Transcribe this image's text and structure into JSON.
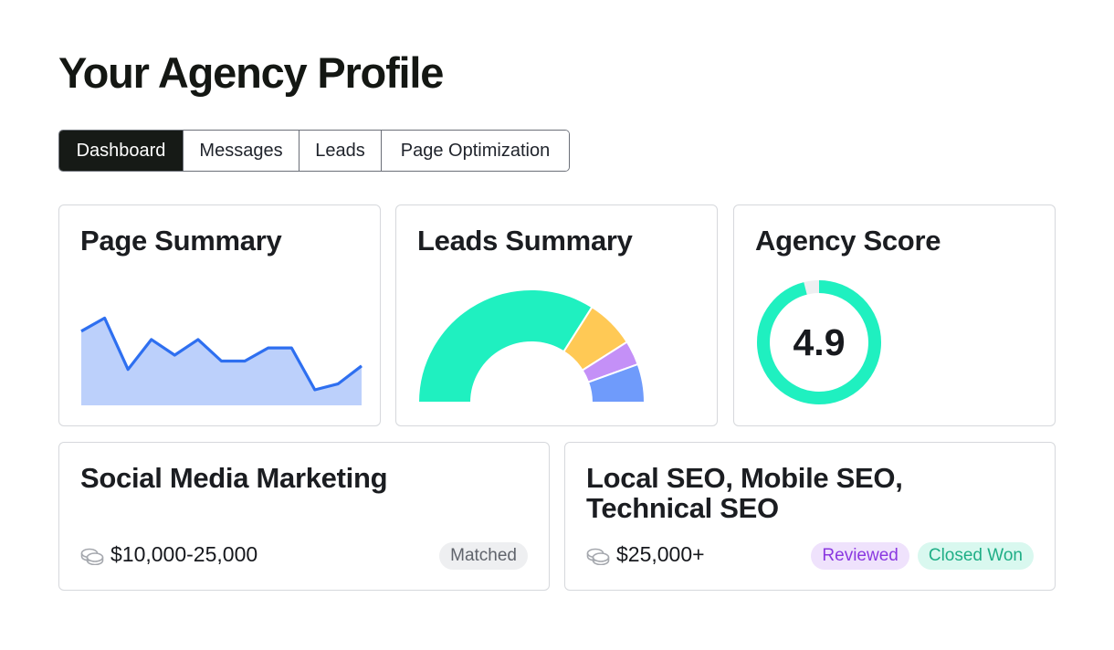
{
  "page": {
    "title": "Your Agency Profile"
  },
  "tabs": [
    {
      "label": "Dashboard",
      "active": true
    },
    {
      "label": "Messages",
      "active": false
    },
    {
      "label": "Leads",
      "active": false
    },
    {
      "label": "Page Optimization",
      "active": false
    }
  ],
  "page_summary": {
    "title": "Page Summary",
    "chart_data": {
      "type": "area",
      "values": [
        62,
        73,
        30,
        55,
        42,
        55,
        37,
        37,
        48,
        48,
        13,
        18,
        33
      ],
      "ylim": [
        0,
        100
      ],
      "line_color": "#2e6ff0",
      "fill_color": "#bcd0fb"
    }
  },
  "leads_summary": {
    "title": "Leads Summary",
    "chart_data": {
      "type": "pie",
      "style": "semi-donut",
      "slices": [
        {
          "value": 68,
          "color": "#1ff0c0"
        },
        {
          "value": 14,
          "color": "#ffc955"
        },
        {
          "value": 7,
          "color": "#c490f7"
        },
        {
          "value": 11,
          "color": "#6f9bfb"
        }
      ]
    }
  },
  "agency_score": {
    "title": "Agency Score",
    "score": "4.9",
    "fraction": 0.96,
    "ring_color": "#1ff0c0",
    "track_color": "#eeeff1"
  },
  "deals": [
    {
      "title": "Social Media Marketing",
      "budget": "$10,000-25,000",
      "icon": "coins-icon",
      "badges": [
        {
          "label": "Matched"
        }
      ]
    },
    {
      "title": "Local SEO, Mobile SEO, Technical SEO",
      "budget": "$25,000+",
      "icon": "coins-icon",
      "badges": [
        {
          "label": "Reviewed"
        },
        {
          "label": "Closed Won"
        }
      ]
    }
  ]
}
